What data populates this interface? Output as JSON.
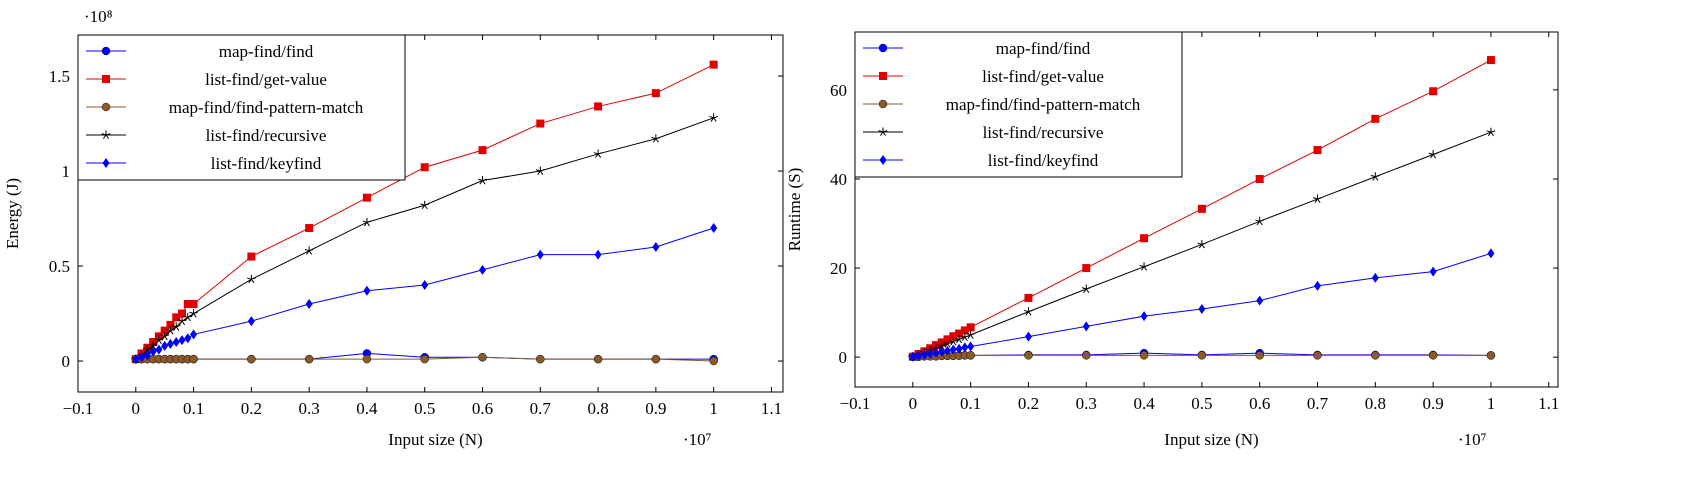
{
  "chart_data": [
    {
      "type": "line",
      "xlabel": "Input size (N)",
      "ylabel": "Energy (J)",
      "x_scale_label": "·10⁷",
      "y_scale_label": "·10⁸",
      "xlim": [
        -0.1,
        1.12
      ],
      "ylim": [
        -0.163,
        1.716
      ],
      "xticks": [
        {
          "value": -0.1,
          "label": "−0.1"
        },
        0,
        0.1,
        0.2,
        0.3,
        0.4,
        0.5,
        0.6,
        0.7,
        0.8,
        0.9,
        1,
        1.1
      ],
      "yticks": [
        0,
        0.5,
        1,
        1.5
      ],
      "x": [
        0,
        0.01,
        0.02,
        0.03,
        0.04,
        0.05,
        0.06,
        0.07,
        0.08,
        0.09,
        0.1,
        0.2,
        0.3,
        0.4,
        0.5,
        0.6,
        0.7,
        0.8,
        0.9,
        1
      ],
      "series": [
        {
          "name": "map-find/find",
          "color": "#0000ff",
          "marker": "circle",
          "values": [
            0.01,
            0.01,
            0.01,
            0.01,
            0.01,
            0.01,
            0.01,
            0.01,
            0.01,
            0.01,
            0.01,
            0.01,
            0.01,
            0.04,
            0.02,
            0.02,
            0.01,
            0.01,
            0.01,
            0.01
          ]
        },
        {
          "name": "list-find/get-value",
          "color": "#e00000",
          "marker": "square",
          "values": [
            0.01,
            0.04,
            0.07,
            0.1,
            0.13,
            0.16,
            0.19,
            0.23,
            0.25,
            0.3,
            0.3,
            0.55,
            0.7,
            0.86,
            1.02,
            1.11,
            1.25,
            1.34,
            1.41,
            1.56
          ]
        },
        {
          "name": "map-find/find-pattern-match",
          "color": "#8b5a2b",
          "marker": "circle",
          "values": [
            0.01,
            0.01,
            0.01,
            0.01,
            0.01,
            0.01,
            0.01,
            0.01,
            0.01,
            0.01,
            0.01,
            0.01,
            0.01,
            0.01,
            0.01,
            0.02,
            0.01,
            0.01,
            0.01,
            0.0
          ]
        },
        {
          "name": "list-find/recursive",
          "color": "#000000",
          "marker": "star",
          "values": [
            0.01,
            0.03,
            0.06,
            0.08,
            0.11,
            0.13,
            0.16,
            0.18,
            0.21,
            0.23,
            0.25,
            0.43,
            0.58,
            0.73,
            0.82,
            0.95,
            1.0,
            1.09,
            1.17,
            1.28
          ]
        },
        {
          "name": "list-find/keyfind",
          "color": "#0000ff",
          "marker": "diamond",
          "values": [
            0.01,
            0.02,
            0.03,
            0.05,
            0.06,
            0.08,
            0.09,
            0.1,
            0.11,
            0.12,
            0.14,
            0.21,
            0.3,
            0.37,
            0.4,
            0.48,
            0.56,
            0.56,
            0.6,
            0.7
          ]
        }
      ]
    },
    {
      "type": "line",
      "xlabel": "Input size (N)",
      "ylabel": "Runtime (S)",
      "x_scale_label": "·10⁷",
      "xlim": [
        -0.1,
        1.116
      ],
      "ylim": [
        -6.7,
        73
      ],
      "xticks": [
        {
          "value": -0.1,
          "label": "−0.1"
        },
        0,
        0.1,
        0.2,
        0.3,
        0.4,
        0.5,
        0.6,
        0.7,
        0.8,
        0.9,
        1,
        1.1
      ],
      "yticks": [
        0,
        20,
        40,
        60
      ],
      "x": [
        0,
        0.01,
        0.02,
        0.03,
        0.04,
        0.05,
        0.06,
        0.07,
        0.08,
        0.09,
        0.1,
        0.2,
        0.3,
        0.4,
        0.5,
        0.6,
        0.7,
        0.8,
        0.9,
        1
      ],
      "series": [
        {
          "name": "map-find/find",
          "color": "#0000ff",
          "marker": "circle",
          "values": [
            0.1,
            0.1,
            0.2,
            0.2,
            0.2,
            0.3,
            0.3,
            0.3,
            0.4,
            0.4,
            0.4,
            0.5,
            0.5,
            0.9,
            0.5,
            0.9,
            0.5,
            0.5,
            0.5,
            0.4
          ]
        },
        {
          "name": "list-find/get-value",
          "color": "#e00000",
          "marker": "square",
          "values": [
            0.1,
            0.7,
            1.3,
            2.0,
            2.7,
            3.3,
            4.0,
            4.7,
            5.3,
            6.0,
            6.7,
            13.3,
            20,
            26.7,
            33.3,
            40,
            46.5,
            53.5,
            59.7,
            66.7
          ]
        },
        {
          "name": "map-find/find-pattern-match",
          "color": "#8b5a2b",
          "marker": "circle",
          "values": [
            0.1,
            0.1,
            0.2,
            0.2,
            0.2,
            0.3,
            0.3,
            0.3,
            0.3,
            0.4,
            0.4,
            0.4,
            0.4,
            0.4,
            0.4,
            0.4,
            0.4,
            0.4,
            0.4,
            0.4
          ]
        },
        {
          "name": "list-find/recursive",
          "color": "#000000",
          "marker": "star",
          "values": [
            0.1,
            0.5,
            1.0,
            1.5,
            2.0,
            2.5,
            3.0,
            3.5,
            4.0,
            4.5,
            5.0,
            10.2,
            15.3,
            20.3,
            25.3,
            30.5,
            35.5,
            40.5,
            45.5,
            50.5
          ]
        },
        {
          "name": "list-find/keyfind",
          "color": "#0000ff",
          "marker": "diamond",
          "values": [
            0.1,
            0.3,
            0.5,
            0.7,
            1.0,
            1.2,
            1.4,
            1.7,
            1.9,
            2.2,
            2.4,
            4.6,
            6.9,
            9.2,
            10.8,
            12.7,
            16,
            17.8,
            19.2,
            23.3
          ]
        }
      ]
    }
  ]
}
